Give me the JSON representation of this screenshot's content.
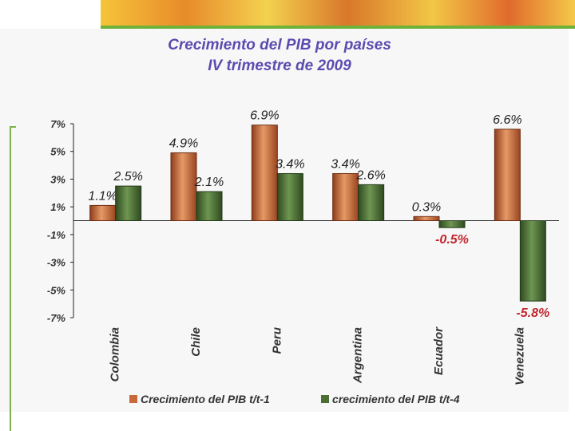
{
  "title_line1": "Crecimiento del PIB por países",
  "title_line2": "IV trimestre de 2009",
  "chart_data": {
    "type": "bar",
    "title": "Crecimiento del PIB por países IV trimestre de 2009",
    "categories": [
      "Colombia",
      "Chile",
      "Peru",
      "Argentina",
      "Ecuador",
      "Venezuela"
    ],
    "series": [
      {
        "name": "Crecimiento del PIB t/t-1",
        "values": [
          1.1,
          4.9,
          6.9,
          3.4,
          0.3,
          6.6
        ],
        "labels": [
          "1.1%",
          "4.9%",
          "6.9%",
          "3.4%",
          "0.3%",
          "6.6%"
        ],
        "color": "#c8693a"
      },
      {
        "name": "crecimiento del PIB t/t-4",
        "values": [
          2.5,
          2.1,
          3.4,
          2.6,
          -0.5,
          -5.8
        ],
        "labels": [
          "2.5%",
          "2.1%",
          "3.4%",
          "2.6%",
          "-0.5%",
          "-5.8%"
        ],
        "color": "#4c6e35"
      }
    ],
    "yticks": [
      "7%",
      "5%",
      "3%",
      "1%",
      "-1%",
      "-3%",
      "-5%",
      "-7%"
    ],
    "ylim": [
      -7,
      7
    ],
    "negative_label_color": "#c0262d",
    "legend_position": "bottom"
  }
}
